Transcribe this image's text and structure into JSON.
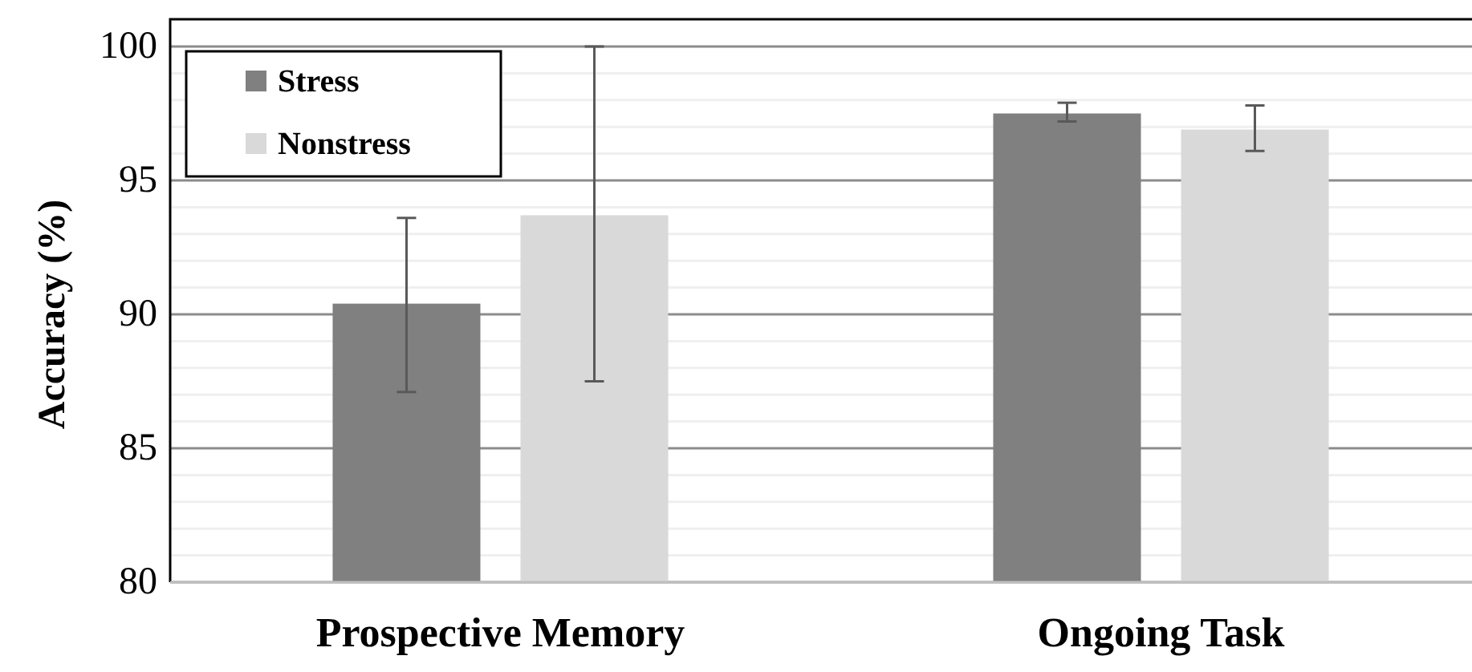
{
  "chart_data": {
    "type": "bar",
    "ylabel": "Accuracy (%)",
    "categories": [
      "Prospective Memory",
      "Ongoing Task"
    ],
    "series": [
      {
        "name": "Stress",
        "color": "#808080",
        "values": [
          90.4,
          97.5
        ],
        "errors": [
          [
            87.1,
            93.6
          ],
          [
            97.2,
            97.9
          ]
        ]
      },
      {
        "name": "Nonstress",
        "color": "#d9d9d9",
        "values": [
          93.7,
          96.9
        ],
        "errors": [
          [
            87.5,
            100.0
          ],
          [
            96.1,
            97.8
          ]
        ]
      }
    ],
    "ylim": [
      80,
      100
    ],
    "yticks": [
      80,
      {
        "value": 81,
        "label": null
      },
      {
        "value": 82,
        "label": null
      },
      {
        "value": 83,
        "label": null
      },
      {
        "value": 84,
        "label": null
      },
      85,
      {
        "value": 86,
        "label": null
      },
      {
        "value": 87,
        "label": null
      },
      {
        "value": 88,
        "label": null
      },
      {
        "value": 89,
        "label": null
      },
      90,
      {
        "value": 91,
        "label": null
      },
      {
        "value": 92,
        "label": null
      },
      {
        "value": 93,
        "label": null
      },
      {
        "value": 94,
        "label": null
      },
      95,
      {
        "value": 96,
        "label": null
      },
      {
        "value": 97,
        "label": null
      },
      {
        "value": 98,
        "label": null
      },
      {
        "value": 99,
        "label": null
      },
      100
    ],
    "grid": "y",
    "legend": "top left"
  }
}
